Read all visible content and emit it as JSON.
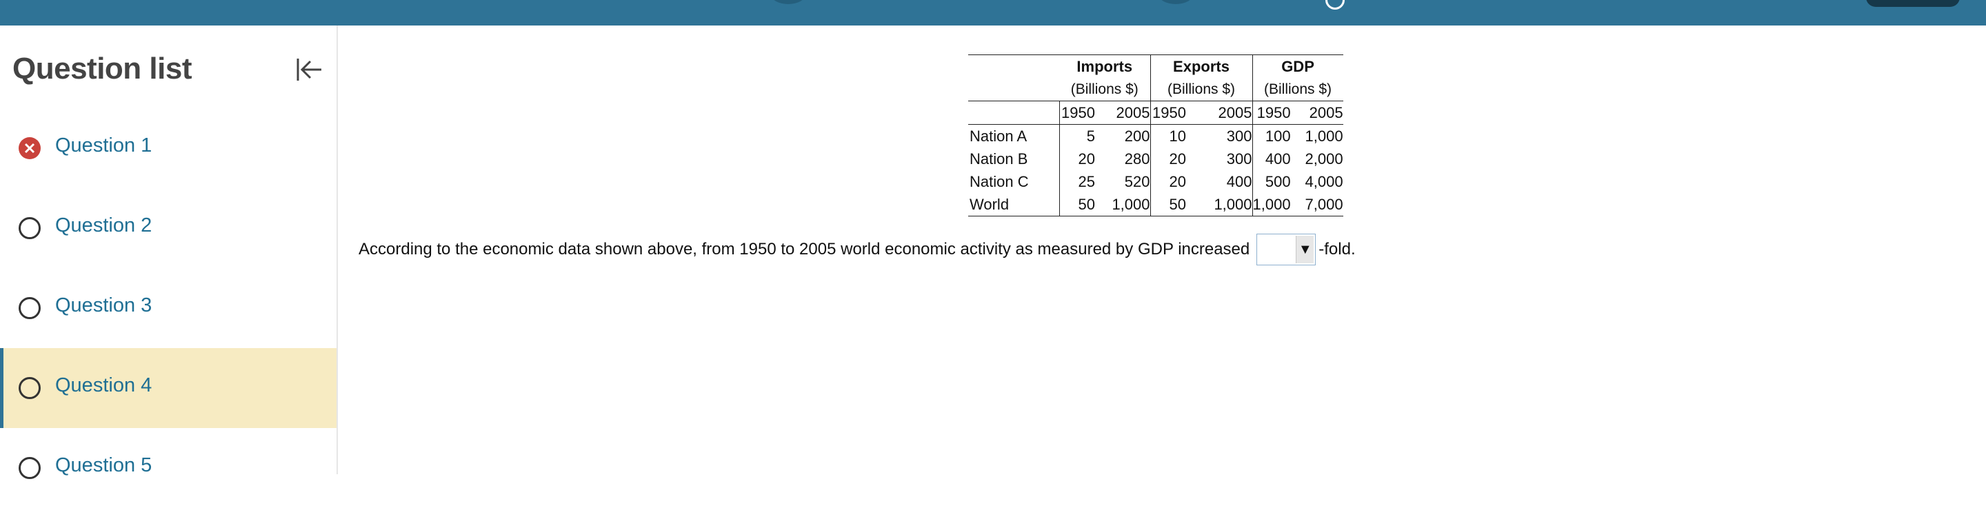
{
  "sidebar": {
    "title": "Question list",
    "items": [
      {
        "label": "Question 1",
        "status": "incorrect",
        "active": false
      },
      {
        "label": "Question 2",
        "status": "unanswered",
        "active": false
      },
      {
        "label": "Question 3",
        "status": "unanswered",
        "active": false
      },
      {
        "label": "Question 4",
        "status": "unanswered",
        "active": true
      },
      {
        "label": "Question 5",
        "status": "unanswered",
        "active": false
      }
    ]
  },
  "topbar": {
    "mid_text": "",
    "points_text": ""
  },
  "table": {
    "groups": [
      {
        "name": "Imports",
        "unit": "(Billions $)"
      },
      {
        "name": "Exports",
        "unit": "(Billions $)"
      },
      {
        "name": "GDP",
        "unit": "(Billions $)"
      }
    ],
    "years": [
      "1950",
      "2005"
    ],
    "rows": [
      {
        "name": "Nation A",
        "values": [
          "5",
          "200",
          "10",
          "300",
          "100",
          "1,000"
        ]
      },
      {
        "name": "Nation B",
        "values": [
          "20",
          "280",
          "20",
          "300",
          "400",
          "2,000"
        ]
      },
      {
        "name": "Nation C",
        "values": [
          "25",
          "520",
          "20",
          "400",
          "500",
          "4,000"
        ]
      },
      {
        "name": "World",
        "values": [
          "50",
          "1,000",
          "50",
          "1,000",
          "1,000",
          "7,000"
        ]
      }
    ]
  },
  "question": {
    "prefix": "According to the economic data shown above, from 1950 to 2005 world economic activity as measured by GDP increased",
    "suffix": "-fold.",
    "dropdown_value": "",
    "dropdown_arrow": "▼"
  },
  "colors": {
    "topbar": "#2f7396",
    "link": "#1f6f94",
    "active_bg": "#f7ebc2",
    "incorrect": "#c9423b"
  }
}
